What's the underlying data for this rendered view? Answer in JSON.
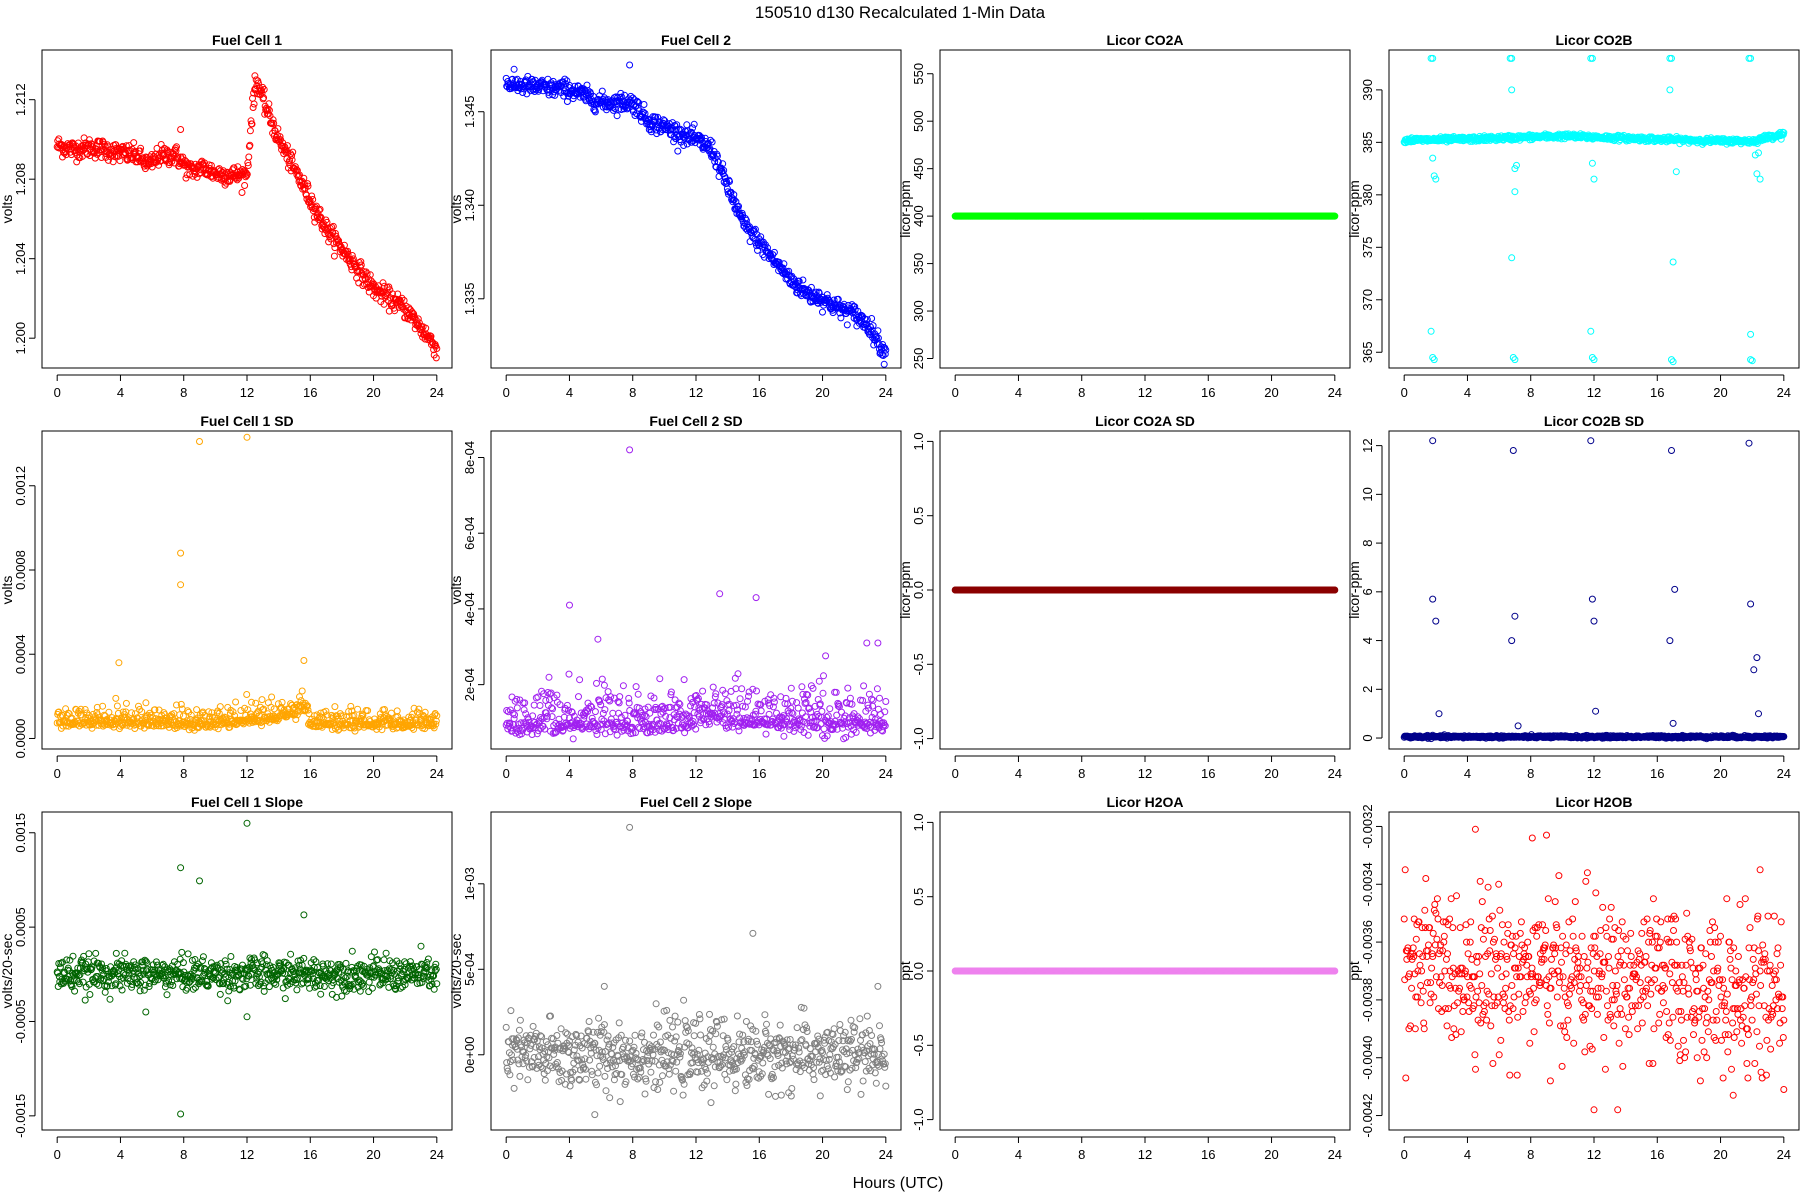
{
  "figure": {
    "title": "150510   d130   Recalculated 1-Min Data",
    "xlabel": "Hours (UTC)"
  },
  "chart_data": [
    {
      "id": "fc1",
      "type": "scatter",
      "title": "Fuel Cell 1",
      "ylabel": "volts",
      "color": "#ff0000",
      "xlim": [
        -0.96,
        24.96
      ],
      "ylim": [
        1.1985,
        1.2145
      ],
      "xticks": [
        "0",
        "4",
        "8",
        "12",
        "16",
        "20",
        "24"
      ],
      "yticks": [
        "1.200",
        "1.204",
        "1.208",
        "1.212"
      ],
      "segments": [
        [
          0,
          1.2097
        ],
        [
          1,
          1.2095
        ],
        [
          2,
          1.2096
        ],
        [
          3,
          1.2095
        ],
        [
          4,
          1.2093
        ],
        [
          5,
          1.2092
        ],
        [
          5.8,
          1.2087
        ],
        [
          6.5,
          1.2092
        ],
        [
          7.5,
          1.2092
        ],
        [
          8.4,
          1.2084
        ],
        [
          9.2,
          1.2086
        ],
        [
          10,
          1.2083
        ],
        [
          11,
          1.2082
        ],
        [
          12,
          1.2082
        ],
        [
          12.3,
          1.2112
        ],
        [
          12.6,
          1.213
        ],
        [
          13,
          1.212
        ],
        [
          14,
          1.21
        ],
        [
          15,
          1.2085
        ],
        [
          16,
          1.207
        ],
        [
          17,
          1.2055
        ],
        [
          18,
          1.2045
        ],
        [
          19,
          1.2035
        ],
        [
          20,
          1.2025
        ],
        [
          21,
          1.202
        ],
        [
          22,
          1.2015
        ],
        [
          23,
          1.2005
        ],
        [
          24,
          1.1995
        ]
      ],
      "outliers": [
        [
          7.8,
          1.2105
        ],
        [
          12.5,
          1.2132
        ]
      ],
      "noise": 0.00025
    },
    {
      "id": "fc2",
      "type": "scatter",
      "title": "Fuel Cell 2",
      "ylabel": "volts",
      "color": "#0000ff",
      "xlim": [
        -0.96,
        24.96
      ],
      "ylim": [
        1.3313,
        1.3483
      ],
      "xticks": [
        "0",
        "4",
        "8",
        "12",
        "16",
        "20",
        "24"
      ],
      "yticks": [
        "1.335",
        "1.340",
        "1.345"
      ],
      "segments": [
        [
          0,
          1.3465
        ],
        [
          2,
          1.3463
        ],
        [
          4,
          1.3462
        ],
        [
          6,
          1.3455
        ],
        [
          8,
          1.3455
        ],
        [
          9,
          1.3445
        ],
        [
          10,
          1.3442
        ],
        [
          12,
          1.3435
        ],
        [
          13,
          1.343
        ],
        [
          14,
          1.341
        ],
        [
          15,
          1.339
        ],
        [
          16,
          1.338
        ],
        [
          17,
          1.337
        ],
        [
          18,
          1.336
        ],
        [
          19,
          1.3353
        ],
        [
          20,
          1.335
        ],
        [
          21,
          1.3345
        ],
        [
          22,
          1.3342
        ],
        [
          23,
          1.3335
        ],
        [
          24,
          1.332
        ]
      ],
      "outliers": [
        [
          7.8,
          1.3475
        ]
      ],
      "noise": 0.00025
    },
    {
      "id": "co2a",
      "type": "scatter",
      "title": "Licor CO2A",
      "ylabel": "licor-ppm",
      "color": "#00ff00",
      "xlim": [
        -0.96,
        24.96
      ],
      "ylim": [
        240,
        575
      ],
      "xticks": [
        "0",
        "4",
        "8",
        "12",
        "16",
        "20",
        "24"
      ],
      "yticks": [
        "250",
        "300",
        "350",
        "400",
        "450",
        "500",
        "550"
      ],
      "segments": [
        [
          0,
          400
        ],
        [
          24,
          400
        ]
      ],
      "outliers": [],
      "noise": 0
    },
    {
      "id": "co2b",
      "type": "scatter",
      "title": "Licor CO2B",
      "ylabel": "licor-ppm",
      "color": "#00ffff",
      "xlim": [
        -0.96,
        24.96
      ],
      "ylim": [
        363.5,
        393.8
      ],
      "xticks": [
        "0",
        "4",
        "8",
        "12",
        "16",
        "20",
        "24"
      ],
      "yticks": [
        "365",
        "370",
        "375",
        "380",
        "385",
        "390"
      ],
      "segments": [
        [
          0,
          385.2
        ],
        [
          4,
          385.3
        ],
        [
          8,
          385.5
        ],
        [
          10,
          385.6
        ],
        [
          14,
          385.4
        ],
        [
          18,
          385.2
        ],
        [
          22,
          385.1
        ],
        [
          23,
          385.5
        ],
        [
          24,
          385.8
        ]
      ],
      "outliers": [
        [
          1.7,
          393
        ],
        [
          1.8,
          393
        ],
        [
          1.7,
          367
        ],
        [
          1.8,
          364.5
        ],
        [
          1.9,
          364.3
        ],
        [
          1.9,
          381.8
        ],
        [
          2.0,
          381.5
        ],
        [
          1.8,
          383.5
        ],
        [
          6.7,
          393
        ],
        [
          6.8,
          393
        ],
        [
          6.8,
          390
        ],
        [
          6.8,
          374
        ],
        [
          6.9,
          364.5
        ],
        [
          7.0,
          364.3
        ],
        [
          7.0,
          380.3
        ],
        [
          7.0,
          382.5
        ],
        [
          7.1,
          382.8
        ],
        [
          11.8,
          393
        ],
        [
          11.9,
          393
        ],
        [
          11.8,
          367
        ],
        [
          11.9,
          364.5
        ],
        [
          12.0,
          364.3
        ],
        [
          12.0,
          381.5
        ],
        [
          11.9,
          383
        ],
        [
          16.8,
          393
        ],
        [
          16.9,
          393
        ],
        [
          16.8,
          390
        ],
        [
          17.0,
          373.6
        ],
        [
          16.9,
          364.3
        ],
        [
          17.0,
          364.1
        ],
        [
          17.2,
          382.2
        ],
        [
          21.8,
          393
        ],
        [
          21.9,
          393
        ],
        [
          21.9,
          366.7
        ],
        [
          21.9,
          364.3
        ],
        [
          22.0,
          364.2
        ],
        [
          22.2,
          383.8
        ],
        [
          22.3,
          382
        ],
        [
          22.5,
          381.5
        ],
        [
          22.4,
          384
        ]
      ],
      "noise": 0.12
    },
    {
      "id": "fc1sd",
      "type": "scatter",
      "title": "Fuel Cell 1 SD",
      "ylabel": "volts",
      "color": "#ffa500",
      "xlim": [
        -0.96,
        24.96
      ],
      "ylim": [
        -5e-05,
        0.00146
      ],
      "xticks": [
        "0",
        "4",
        "8",
        "12",
        "16",
        "20",
        "24"
      ],
      "yticks": [
        "0.0000",
        "0.0004",
        "0.0008",
        "0.0012"
      ],
      "segments": [
        [
          0,
          8e-05
        ],
        [
          10,
          7e-05
        ],
        [
          12,
          9e-05
        ],
        [
          15,
          0.00012
        ],
        [
          15.5,
          0.00016
        ],
        [
          16,
          7e-05
        ],
        [
          24,
          7e-05
        ]
      ],
      "outliers": [
        [
          7.8,
          0.00088
        ],
        [
          7.8,
          0.00073
        ],
        [
          9,
          0.00141
        ],
        [
          12,
          0.00143
        ],
        [
          3.9,
          0.00036
        ],
        [
          15.6,
          0.00037
        ]
      ],
      "noise": 3.5e-05,
      "floor": 2e-05
    },
    {
      "id": "fc2sd",
      "type": "scatter",
      "title": "Fuel Cell 2 SD",
      "ylabel": "volts",
      "color": "#a020f0",
      "xlim": [
        -0.96,
        24.96
      ],
      "ylim": [
        3e-05,
        0.00087
      ],
      "xticks": [
        "0",
        "4",
        "8",
        "12",
        "16",
        "20",
        "24"
      ],
      "yticks": [
        "2e-04",
        "4e-04",
        "6e-04",
        "8e-04"
      ],
      "segments": [
        [
          0,
          0.0001
        ],
        [
          12,
          0.0001
        ],
        [
          13,
          0.00013
        ],
        [
          14,
          0.00011
        ],
        [
          24,
          0.0001
        ]
      ],
      "outliers": [
        [
          7.8,
          0.00082
        ],
        [
          4,
          0.00041
        ],
        [
          13.5,
          0.00044
        ],
        [
          15.8,
          0.00043
        ],
        [
          5.8,
          0.00032
        ],
        [
          22.8,
          0.00031
        ],
        [
          23.5,
          0.00031
        ]
      ],
      "noise": 4.5e-05,
      "floor": 4e-05
    },
    {
      "id": "co2asd",
      "type": "scatter",
      "title": "Licor CO2A SD",
      "ylabel": "licor-ppm",
      "color": "#8b0000",
      "xlim": [
        -0.96,
        24.96
      ],
      "ylim": [
        -1.07,
        1.07
      ],
      "xticks": [
        "0",
        "4",
        "8",
        "12",
        "16",
        "20",
        "24"
      ],
      "yticks": [
        "-1.0",
        "-0.5",
        "0.0",
        "0.5",
        "1.0"
      ],
      "segments": [
        [
          0,
          0
        ],
        [
          24,
          0
        ]
      ],
      "outliers": [],
      "noise": 0
    },
    {
      "id": "co2bsd",
      "type": "scatter",
      "title": "Licor CO2B SD",
      "ylabel": "licor-ppm",
      "color": "#00008b",
      "xlim": [
        -0.96,
        24.96
      ],
      "ylim": [
        -0.45,
        12.6
      ],
      "xticks": [
        "0",
        "4",
        "8",
        "12",
        "16",
        "20",
        "24"
      ],
      "yticks": [
        "0",
        "2",
        "4",
        "6",
        "8",
        "10",
        "12"
      ],
      "segments": [
        [
          0,
          0.05
        ],
        [
          24,
          0.05
        ]
      ],
      "outliers": [
        [
          1.8,
          12.2
        ],
        [
          1.8,
          5.7
        ],
        [
          2.0,
          4.8
        ],
        [
          2.2,
          1.0
        ],
        [
          6.9,
          11.8
        ],
        [
          6.8,
          4.0
        ],
        [
          7.0,
          5.0
        ],
        [
          7.2,
          0.5
        ],
        [
          11.8,
          12.2
        ],
        [
          11.9,
          5.7
        ],
        [
          12.0,
          4.8
        ],
        [
          12.1,
          1.1
        ],
        [
          16.9,
          11.8
        ],
        [
          16.8,
          4.0
        ],
        [
          17.1,
          6.1
        ],
        [
          17.0,
          0.6
        ],
        [
          21.8,
          12.1
        ],
        [
          21.9,
          5.5
        ],
        [
          22.1,
          2.8
        ],
        [
          22.3,
          3.3
        ],
        [
          22.4,
          1.0
        ]
      ],
      "noise": 0.025
    },
    {
      "id": "fc1slope",
      "type": "scatter",
      "title": "Fuel Cell 1 Slope",
      "ylabel": "volts/20-sec",
      "color": "#006400",
      "xlim": [
        -0.96,
        24.96
      ],
      "ylim": [
        -0.00165,
        0.00172
      ],
      "xticks": [
        "0",
        "4",
        "8",
        "12",
        "16",
        "20",
        "24"
      ],
      "yticks": [
        "-0.0015",
        "-0.0005",
        "0.0005",
        "0.0015"
      ],
      "segments": [
        [
          0,
          0
        ],
        [
          24,
          0
        ]
      ],
      "outliers": [
        [
          7.8,
          0.00113
        ],
        [
          9,
          0.00099
        ],
        [
          12,
          0.0016
        ],
        [
          15.6,
          0.00063
        ],
        [
          7.8,
          -0.00148
        ],
        [
          12,
          -0.00045
        ],
        [
          5.6,
          -0.0004
        ]
      ],
      "noise": 9e-05
    },
    {
      "id": "fc2slope",
      "type": "scatter",
      "title": "Fuel Cell 2 Slope",
      "ylabel": "volts/20-sec",
      "color": "#808080",
      "xlim": [
        -0.96,
        24.96
      ],
      "ylim": [
        -0.00044,
        0.00142
      ],
      "xticks": [
        "0",
        "4",
        "8",
        "12",
        "16",
        "20",
        "24"
      ],
      "yticks": [
        "0e+00",
        "5e-04",
        "1e-03"
      ],
      "segments": [
        [
          0,
          0
        ],
        [
          24,
          0
        ]
      ],
      "outliers": [
        [
          7.8,
          0.00133
        ],
        [
          15.6,
          0.00071
        ],
        [
          5.6,
          -0.00035
        ],
        [
          6.2,
          0.0004
        ],
        [
          23.5,
          0.0004
        ]
      ],
      "noise": 0.0001
    },
    {
      "id": "h2oa",
      "type": "scatter",
      "title": "Licor H2OA",
      "ylabel": "ppt",
      "color": "#ee82ee",
      "xlim": [
        -0.96,
        24.96
      ],
      "ylim": [
        -1.07,
        1.07
      ],
      "xticks": [
        "0",
        "4",
        "8",
        "12",
        "16",
        "20",
        "24"
      ],
      "yticks": [
        "-1.0",
        "-0.5",
        "0.0",
        "0.5",
        "1.0"
      ],
      "segments": [
        [
          0,
          0
        ],
        [
          24,
          0
        ]
      ],
      "outliers": [],
      "noise": 0
    },
    {
      "id": "h2ob",
      "type": "scatter",
      "title": "Licor H2OB",
      "ylabel": "ppt",
      "color": "#ff0000",
      "xlim": [
        -0.96,
        24.96
      ],
      "ylim": [
        -0.00425,
        -0.00315
      ],
      "xticks": [
        "0",
        "4",
        "8",
        "12",
        "16",
        "20",
        "24"
      ],
      "yticks": [
        "-0.0042",
        "-0.0040",
        "-0.0038",
        "-0.0036",
        "-0.0034",
        "-0.0032"
      ],
      "segments": [
        [
          0,
          -0.00368
        ],
        [
          12,
          -0.00372
        ],
        [
          24,
          -0.0038
        ]
      ],
      "outliers": [
        [
          4.5,
          -0.00321
        ],
        [
          8.1,
          -0.00324
        ],
        [
          9.0,
          -0.00323
        ],
        [
          12,
          -0.00418
        ],
        [
          13.5,
          -0.00418
        ],
        [
          20.8,
          -0.00413
        ],
        [
          24,
          -0.00411
        ],
        [
          22.5,
          -0.00335
        ]
      ],
      "noise": 0.00013,
      "quant": 1e-05
    }
  ]
}
